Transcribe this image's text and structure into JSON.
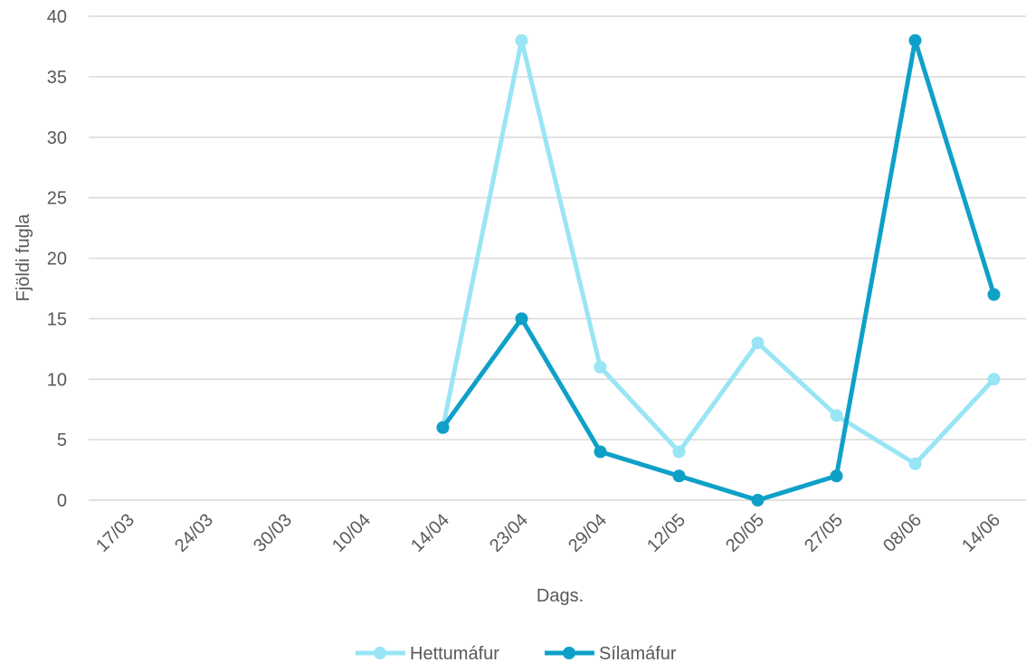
{
  "chart_data": {
    "type": "line",
    "title": "",
    "xlabel": "Dags.",
    "ylabel": "Fjöldi fugla",
    "categories": [
      "17/03",
      "24/03",
      "30/03",
      "10/04",
      "14/04",
      "23/04",
      "29/04",
      "12/05",
      "20/05",
      "27/05",
      "08/06",
      "14/06"
    ],
    "ylim": [
      0,
      40
    ],
    "yticks": [
      0,
      5,
      10,
      15,
      20,
      25,
      30,
      35,
      40
    ],
    "grid": true,
    "legend_position": "bottom",
    "series": [
      {
        "name": "Hettumáfur",
        "color": "#99E5F5",
        "values": [
          null,
          null,
          null,
          null,
          6,
          38,
          11,
          4,
          13,
          7,
          3,
          10
        ]
      },
      {
        "name": "Sílamáfur",
        "color": "#0FA0C8",
        "values": [
          null,
          null,
          null,
          null,
          6,
          15,
          4,
          2,
          0,
          2,
          38,
          17
        ]
      }
    ]
  }
}
